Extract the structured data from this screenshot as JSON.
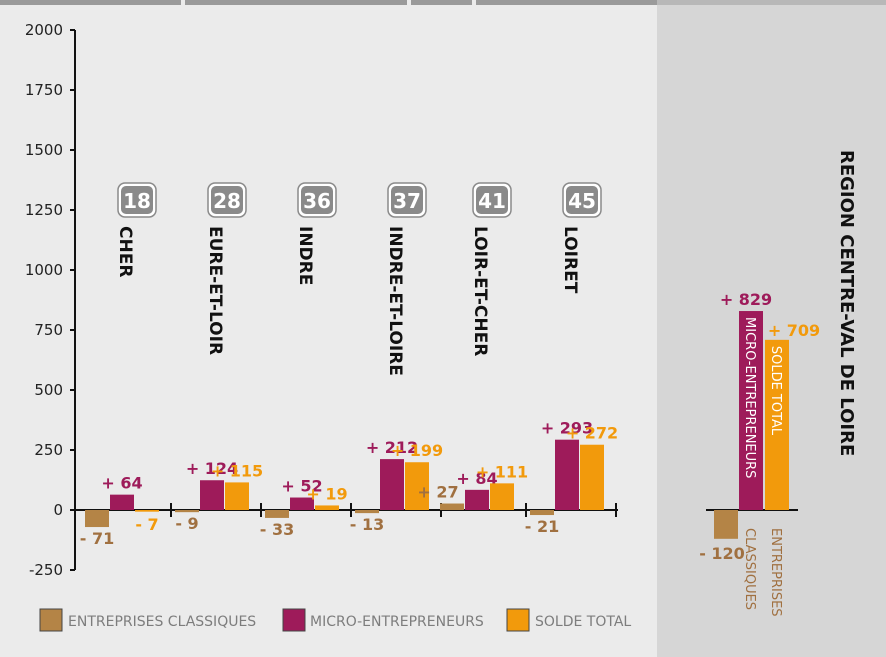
{
  "colors": {
    "classiques": "#b48446",
    "micro": "#9e1b5a",
    "solde": "#f29a0c",
    "classiques_label": "#a07040",
    "micro_label": "#9e1b5a",
    "solde_label": "#f29a0c",
    "background": "#ebebeb",
    "region_background": "#d6d6d6",
    "badge": "#8a8a8a",
    "top_bar": "#9a9a9a"
  },
  "chart_data": {
    "type": "bar",
    "title": "",
    "xlabel": "",
    "ylabel": "",
    "ylim": [
      -250,
      2000
    ],
    "yticks": [
      2000,
      1750,
      1500,
      1250,
      1000,
      750,
      500,
      250,
      0,
      -250
    ],
    "grid": false,
    "legend_position": "bottom",
    "categories": [
      {
        "code": "18",
        "name": "CHER"
      },
      {
        "code": "28",
        "name": "EURE-ET-LOIR"
      },
      {
        "code": "36",
        "name": "INDRE"
      },
      {
        "code": "37",
        "name": "INDRE-ET-LOIRE"
      },
      {
        "code": "41",
        "name": "LOIR-ET-CHER"
      },
      {
        "code": "45",
        "name": "LOIRET"
      }
    ],
    "series": [
      {
        "key": "classiques",
        "name": "ENTREPRISES CLASSIQUES",
        "values": [
          -71,
          -9,
          -33,
          -13,
          27,
          -21
        ],
        "labels": [
          "- 71",
          "- 9",
          "- 33",
          "- 13",
          "+ 27",
          "- 21"
        ]
      },
      {
        "key": "micro",
        "name": "MICRO-ENTREPRENEURS",
        "values": [
          64,
          124,
          52,
          212,
          84,
          293
        ],
        "labels": [
          "+ 64",
          "+ 124",
          "+ 52",
          "+ 212",
          "+ 84",
          "+ 293"
        ]
      },
      {
        "key": "solde",
        "name": "SOLDE TOTAL",
        "values": [
          -7,
          115,
          19,
          199,
          111,
          272
        ],
        "labels": [
          "- 7",
          "+ 115",
          "+ 19",
          "+ 199",
          "+ 111",
          "+ 272"
        ]
      }
    ],
    "region": {
      "title": "REGION CENTRE-VAL DE LOIRE",
      "values": {
        "classiques": -120,
        "micro": 829,
        "solde": 709
      },
      "labels": {
        "classiques": "- 120",
        "micro": "+ 829",
        "solde": "+ 709"
      },
      "bar_text": {
        "micro": "MICRO-ENTREPRENEURS",
        "solde": "SOLDE TOTAL"
      },
      "under_text": {
        "classiques": "CLASSIQUES",
        "entreprises": "ENTREPRISES"
      }
    }
  }
}
